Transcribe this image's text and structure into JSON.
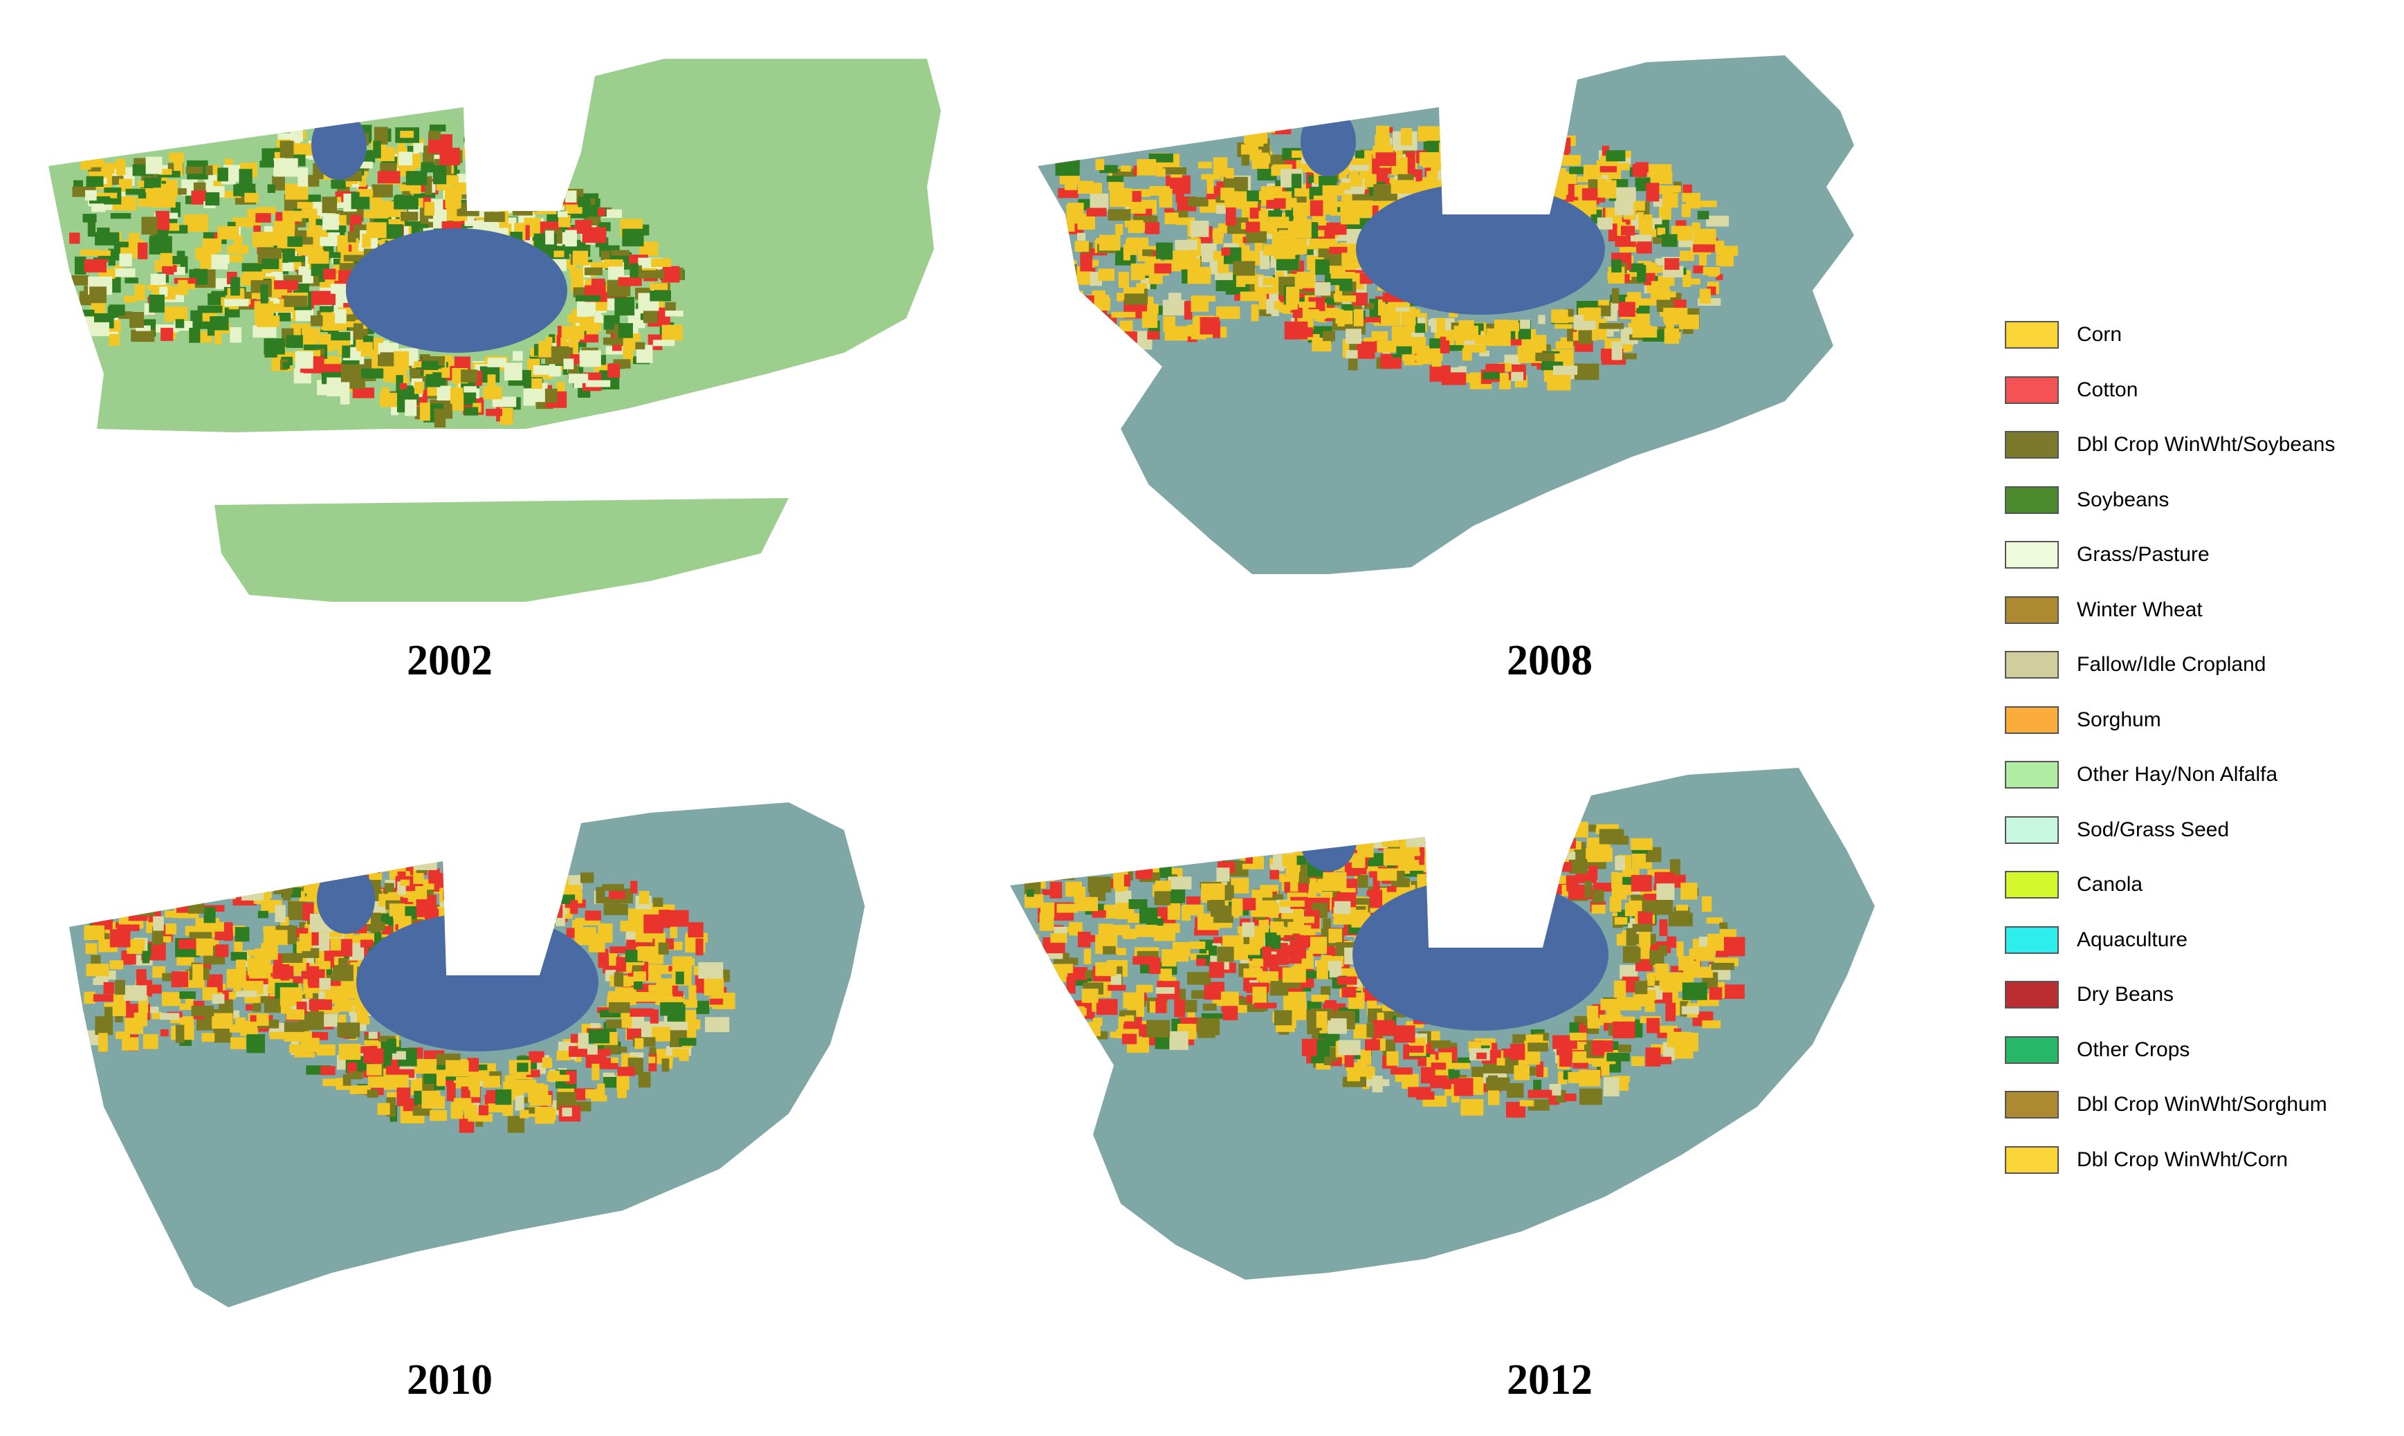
{
  "maps": [
    {
      "year": "2002",
      "base": "#9ccf8e",
      "fields": [
        [
          "#f2c624",
          0.3
        ],
        [
          "#2f7d22",
          0.25
        ],
        [
          "#e8342c",
          0.1
        ],
        [
          "#e6f3c8",
          0.2
        ],
        [
          "#7c7a21",
          0.15
        ]
      ]
    },
    {
      "year": "2008",
      "base": "#7fa7a5",
      "fields": [
        [
          "#f2c624",
          0.45
        ],
        [
          "#d9d9a6",
          0.18
        ],
        [
          "#e8342c",
          0.15
        ],
        [
          "#7c7a21",
          0.12
        ],
        [
          "#2f7d22",
          0.1
        ]
      ]
    },
    {
      "year": "2010",
      "base": "#7fa7a5",
      "fields": [
        [
          "#f2c624",
          0.45
        ],
        [
          "#e8342c",
          0.22
        ],
        [
          "#7c7a21",
          0.15
        ],
        [
          "#d9d9a6",
          0.1
        ],
        [
          "#2f7d22",
          0.08
        ]
      ]
    },
    {
      "year": "2012",
      "base": "#7fa7a5",
      "fields": [
        [
          "#f2c624",
          0.42
        ],
        [
          "#e8342c",
          0.25
        ],
        [
          "#7c7a21",
          0.18
        ],
        [
          "#2f7d22",
          0.08
        ],
        [
          "#d9d9a6",
          0.07
        ]
      ]
    }
  ],
  "colors": {
    "water": "#4a6aa3"
  },
  "legend": [
    {
      "label": "Corn",
      "color": "#fbd437"
    },
    {
      "label": "Cotton",
      "color": "#f55256"
    },
    {
      "label": "Dbl Crop WinWht/Soybeans",
      "color": "#7b7a2c"
    },
    {
      "label": "Soybeans",
      "color": "#4b8a2d"
    },
    {
      "label": "Grass/Pasture",
      "color": "#eefbdc"
    },
    {
      "label": "Winter Wheat",
      "color": "#ad8a32"
    },
    {
      "label": "Fallow/Idle Cropland",
      "color": "#d2cd9c"
    },
    {
      "label": "Sorghum",
      "color": "#fbad3b"
    },
    {
      "label": "Other Hay/Non Alfalfa",
      "color": "#b2eda4"
    },
    {
      "label": "Sod/Grass Seed",
      "color": "#c9f8e0"
    },
    {
      "label": "Canola",
      "color": "#d3f92e"
    },
    {
      "label": "Aquaculture",
      "color": "#2deded"
    },
    {
      "label": "Dry Beans",
      "color": "#bc2d32"
    },
    {
      "label": "Other Crops",
      "color": "#26b768"
    },
    {
      "label": "Dbl Crop WinWht/Sorghum",
      "color": "#ad8a32"
    },
    {
      "label": "Dbl Crop WinWht/Corn",
      "color": "#fbd437"
    }
  ]
}
